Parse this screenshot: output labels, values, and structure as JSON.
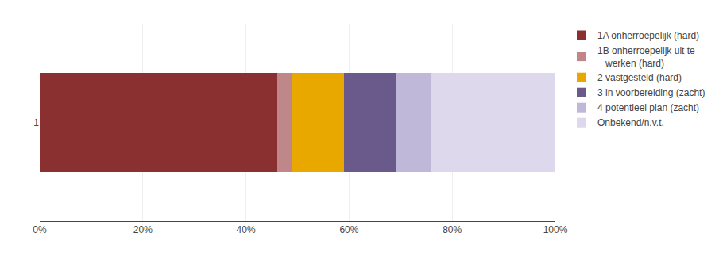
{
  "chart_data": {
    "type": "bar",
    "orientation": "horizontal",
    "stacked": true,
    "categories": [
      "1"
    ],
    "series": [
      {
        "name": "1A onherroepelijk (hard)",
        "color": "#8B3030",
        "values": [
          46
        ]
      },
      {
        "name": "1B onherroepelijk uit te\n   werken (hard)",
        "color": "#C0878A",
        "values": [
          3
        ]
      },
      {
        "name": "2 vastgesteld (hard)",
        "color": "#E8A800",
        "values": [
          10
        ]
      },
      {
        "name": "3 in voorbereiding (zacht)",
        "color": "#6A5A8C",
        "values": [
          10
        ]
      },
      {
        "name": "4 potentieel plan (zacht)",
        "color": "#C0B8D8",
        "values": [
          7
        ]
      },
      {
        "name": "Onbekend/n.v.t.",
        "color": "#DDD8EC",
        "values": [
          24
        ]
      }
    ],
    "xlim": [
      0,
      100
    ],
    "xticks": [
      {
        "value": 0,
        "label": "0%"
      },
      {
        "value": 20,
        "label": "20%"
      },
      {
        "value": 40,
        "label": "40%"
      },
      {
        "value": 60,
        "label": "60%"
      },
      {
        "value": 80,
        "label": "80%"
      },
      {
        "value": 100,
        "label": "100%"
      }
    ],
    "grid": true,
    "legend": "right"
  }
}
